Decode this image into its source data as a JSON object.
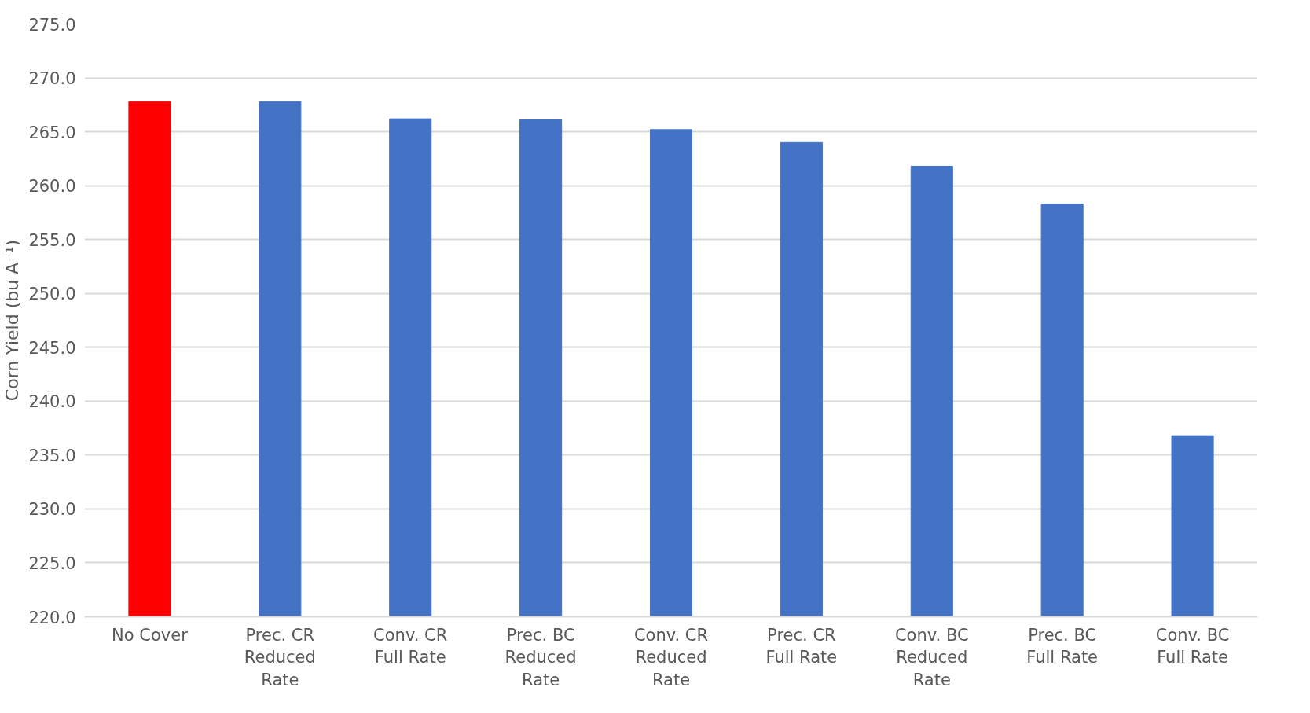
{
  "chart_data": {
    "type": "bar",
    "ylabel": "Corn Yield (bu A⁻¹)",
    "categories": [
      "No Cover",
      "Prec. CR Reduced Rate",
      "Conv. CR Full Rate",
      "Prec. BC Reduced Rate",
      "Conv. CR Reduced Rate",
      "Prec. CR Full Rate",
      "Conv. BC Reduced Rate",
      "Prec. BC Full Rate",
      "Conv. BC Full Rate"
    ],
    "values": [
      267.8,
      267.8,
      266.2,
      266.1,
      265.2,
      264.0,
      261.8,
      258.3,
      236.8
    ],
    "colors": [
      "#ff0000",
      "#4472c4",
      "#4472c4",
      "#4472c4",
      "#4472c4",
      "#4472c4",
      "#4472c4",
      "#4472c4",
      "#4472c4"
    ],
    "ylim": [
      220,
      275
    ],
    "yticks": [
      {
        "value": 220,
        "label": "220.0"
      },
      {
        "value": 225,
        "label": "225.0"
      },
      {
        "value": 230,
        "label": "230.0"
      },
      {
        "value": 235,
        "label": "235.0"
      },
      {
        "value": 240,
        "label": "240.0"
      },
      {
        "value": 245,
        "label": "245.0"
      },
      {
        "value": 250,
        "label": "250.0"
      },
      {
        "value": 255,
        "label": "255.0"
      },
      {
        "value": 260,
        "label": "260.0"
      },
      {
        "value": 265,
        "label": "265.0"
      },
      {
        "value": 270,
        "label": "270.0"
      },
      {
        "value": 275,
        "label": "275.0"
      }
    ],
    "grid": "y"
  }
}
